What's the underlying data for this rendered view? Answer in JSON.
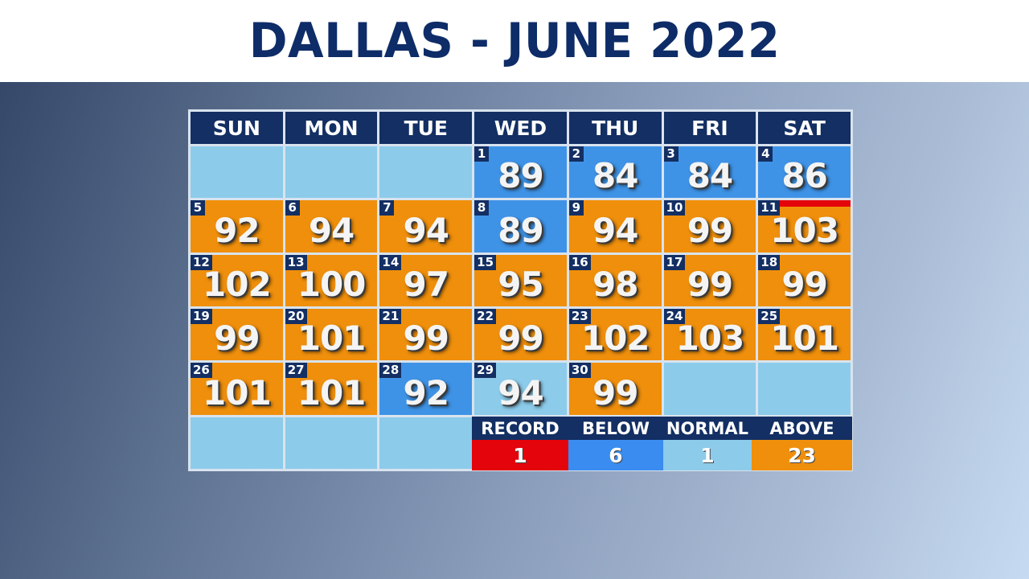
{
  "title": "DALLAS - JUNE 2022",
  "weekdays": [
    "SUN",
    "MON",
    "TUE",
    "WED",
    "THU",
    "FRI",
    "SAT"
  ],
  "days": [
    {
      "day": "1",
      "temp": "89",
      "category": "below"
    },
    {
      "day": "2",
      "temp": "84",
      "category": "below"
    },
    {
      "day": "3",
      "temp": "84",
      "category": "below"
    },
    {
      "day": "4",
      "temp": "86",
      "category": "below"
    },
    {
      "day": "5",
      "temp": "92",
      "category": "above"
    },
    {
      "day": "6",
      "temp": "94",
      "category": "above"
    },
    {
      "day": "7",
      "temp": "94",
      "category": "above"
    },
    {
      "day": "8",
      "temp": "89",
      "category": "below"
    },
    {
      "day": "9",
      "temp": "94",
      "category": "above"
    },
    {
      "day": "10",
      "temp": "99",
      "category": "above"
    },
    {
      "day": "11",
      "temp": "103",
      "category": "above",
      "record": true
    },
    {
      "day": "12",
      "temp": "102",
      "category": "above"
    },
    {
      "day": "13",
      "temp": "100",
      "category": "above"
    },
    {
      "day": "14",
      "temp": "97",
      "category": "above"
    },
    {
      "day": "15",
      "temp": "95",
      "category": "above"
    },
    {
      "day": "16",
      "temp": "98",
      "category": "above"
    },
    {
      "day": "17",
      "temp": "99",
      "category": "above"
    },
    {
      "day": "18",
      "temp": "99",
      "category": "above"
    },
    {
      "day": "19",
      "temp": "99",
      "category": "above"
    },
    {
      "day": "20",
      "temp": "101",
      "category": "above"
    },
    {
      "day": "21",
      "temp": "99",
      "category": "above"
    },
    {
      "day": "22",
      "temp": "99",
      "category": "above"
    },
    {
      "day": "23",
      "temp": "102",
      "category": "above"
    },
    {
      "day": "24",
      "temp": "103",
      "category": "above"
    },
    {
      "day": "25",
      "temp": "101",
      "category": "above"
    },
    {
      "day": "26",
      "temp": "101",
      "category": "above"
    },
    {
      "day": "27",
      "temp": "101",
      "category": "above"
    },
    {
      "day": "28",
      "temp": "92",
      "category": "below"
    },
    {
      "day": "29",
      "temp": "94",
      "category": "normal"
    },
    {
      "day": "30",
      "temp": "99",
      "category": "above"
    }
  ],
  "legend": [
    {
      "label": "RECORD",
      "count": "1",
      "color": "#e4040b"
    },
    {
      "label": "BELOW",
      "count": "6",
      "color": "#3a8cf0"
    },
    {
      "label": "NORMAL",
      "count": "1",
      "color": "#8ccbea"
    },
    {
      "label": "ABOVE",
      "count": "23",
      "color": "#ef8f0c"
    }
  ],
  "colors": {
    "above": "#ef8f0c",
    "below": "#3f93e6",
    "normal": "#8ccbea",
    "record": "#e4040b",
    "header": "#132f63"
  }
}
